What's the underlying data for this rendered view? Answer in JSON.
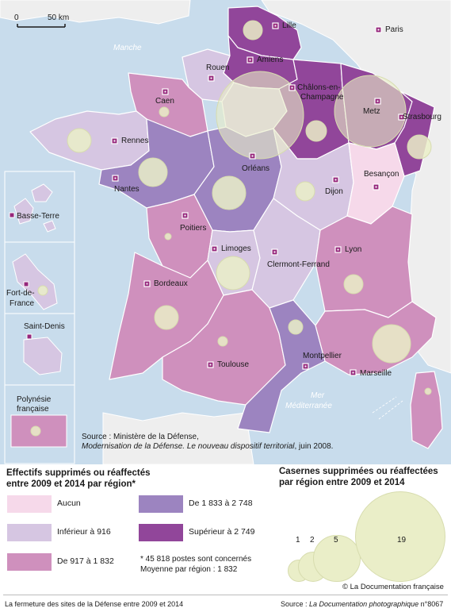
{
  "colors": {
    "sea": "#c8dcec",
    "land_outside": "#eeeeee",
    "aucun": "#f6d9ea",
    "inferieur_916": "#d6c6e2",
    "de_917_a_1832": "#cf90bd",
    "de_1833_a_2748": "#9c84c0",
    "superieur_2749": "#91469a",
    "bubble": "#eaeec8",
    "city_marker": "#96277c"
  },
  "scale": {
    "zero": "0",
    "distance": "50 km"
  },
  "seas": {
    "manche": "Manche",
    "mediterranee_1": "Mer",
    "mediterranee_2": "Méditerranée"
  },
  "cities": [
    {
      "name": "Lille",
      "icon": "city-square-icon"
    },
    {
      "name": "Paris",
      "icon": "city-square-icon"
    },
    {
      "name": "Amiens",
      "icon": "city-square-icon"
    },
    {
      "name": "Rouen",
      "icon": "city-square-icon"
    },
    {
      "name": "Châlons-en-",
      "name2": "Champagne",
      "icon": "city-square-icon"
    },
    {
      "name": "Caen",
      "icon": "city-square-icon"
    },
    {
      "name": "Metz",
      "icon": "city-square-icon"
    },
    {
      "name": "Strasbourg",
      "icon": "city-square-icon"
    },
    {
      "name": "Rennes",
      "icon": "city-square-icon"
    },
    {
      "name": "Orléans",
      "icon": "city-square-icon"
    },
    {
      "name": "Nantes",
      "icon": "city-square-icon"
    },
    {
      "name": "Besançon",
      "icon": "city-square-icon"
    },
    {
      "name": "Dijon",
      "icon": "city-square-icon"
    },
    {
      "name": "Poitiers",
      "icon": "city-square-icon"
    },
    {
      "name": "Limoges",
      "icon": "city-square-icon"
    },
    {
      "name": "Clermont-Ferrand",
      "icon": "city-square-icon"
    },
    {
      "name": "Lyon",
      "icon": "city-square-icon"
    },
    {
      "name": "Bordeaux",
      "icon": "city-square-icon"
    },
    {
      "name": "Montpellier",
      "icon": "city-square-icon"
    },
    {
      "name": "Toulouse",
      "icon": "city-square-icon"
    },
    {
      "name": "Marseille",
      "icon": "city-square-icon"
    }
  ],
  "insets": {
    "guadeloupe": "Basse-Terre",
    "martinique_1": "Fort-de-",
    "martinique_2": "France",
    "reunion": "Saint-Denis",
    "polynesie_1": "Polynésie",
    "polynesie_2": "française"
  },
  "source_map": {
    "prefix": "Source : Ministère de la Défense,",
    "italic": "Modernisation de la Défense. Le nouveau dispositif territorial",
    "suffix": ", juin 2008."
  },
  "legend_effectifs": {
    "title_1": "Effectifs supprimés ou réaffectés",
    "title_2": "entre 2009 et 2014 par région*",
    "classes": [
      "Aucun",
      "Inférieur à 916",
      "De 917 à 1 832",
      "De 1 833 à 2 748",
      "Supérieur à 2 749"
    ],
    "note_1": "* 45 818 postes sont concernés",
    "note_2": "Moyenne par région : 1 832"
  },
  "legend_casernes": {
    "title_1": "Casernes supprimées ou réaffectées",
    "title_2": "par région entre 2009 et 2014",
    "values": [
      1,
      2,
      5,
      19
    ],
    "labels": [
      "1",
      "2",
      "5",
      "19"
    ]
  },
  "credit": "© La Documentation française",
  "footer": {
    "title": "La fermeture des sites de la Défense entre 2009 et 2014",
    "source_prefix": "Source : ",
    "source_italic": "La Documentation photographique",
    "source_suffix": " n°8067"
  }
}
